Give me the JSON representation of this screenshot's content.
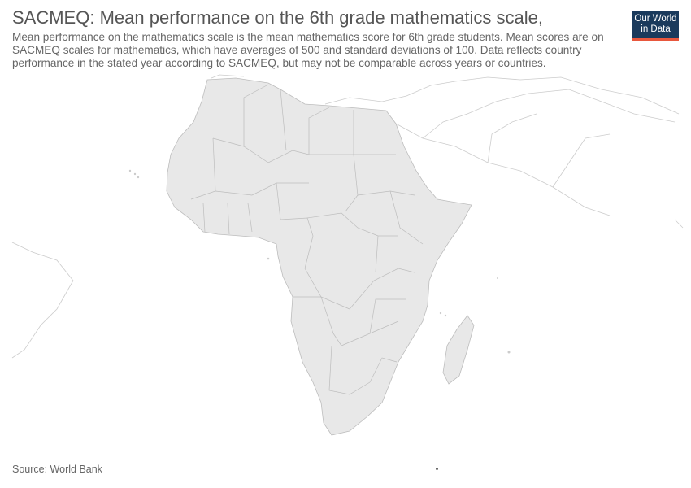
{
  "header": {
    "title": "SACMEQ: Mean performance on the 6th grade mathematics scale,",
    "subtitle": "Mean performance on the mathematics scale is the mean mathematics score for 6th grade students. Mean scores are on SACMEQ scales for mathematics, which have averages of 500 and standard deviations of 100. Data reflects country performance in the stated year according to SACMEQ, but may not be comparable across years or countries."
  },
  "logo": {
    "line1": "Our World",
    "line2": "in Data"
  },
  "footer": {
    "source": "Source: World Bank"
  },
  "colors": {
    "land": "#e8e8e8",
    "border": "#bdbdbd",
    "logo_bg": "#1a3a5c",
    "logo_accent": "#e8573d"
  }
}
